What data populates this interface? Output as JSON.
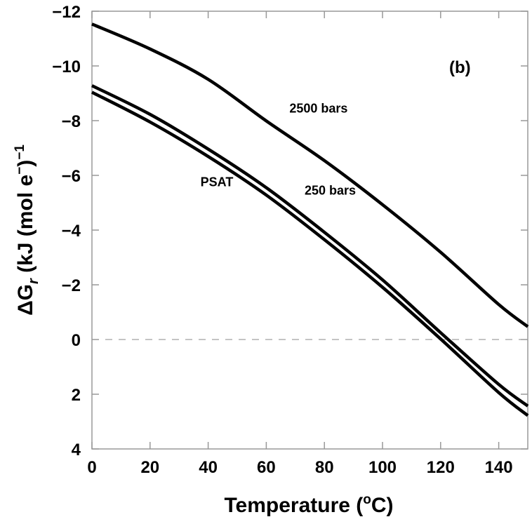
{
  "chart_data": {
    "type": "line",
    "title": "",
    "panel_label": "(b)",
    "xlabel": "Temperature (",
    "xlabel_sup": "o",
    "xlabel_end": "C)",
    "ylabel_prefix": "ΔG",
    "ylabel_sub": "r",
    "ylabel_mid": " (kJ (mol e",
    "ylabel_sup": "−",
    "ylabel_end": ")",
    "ylabel_exp": "−1",
    "xlim": [
      0,
      150
    ],
    "ylim": [
      -12,
      4
    ],
    "y_inverted": true,
    "xticks": [
      "0",
      "20",
      "40",
      "60",
      "80",
      "100",
      "120",
      "140"
    ],
    "xtick_values": [
      0,
      20,
      40,
      60,
      80,
      100,
      120,
      140
    ],
    "yticks": [
      "−12",
      "−10",
      "−8",
      "−6",
      "−4",
      "−2",
      "0",
      "2",
      "4"
    ],
    "ytick_values": [
      -12,
      -10,
      -8,
      -6,
      -4,
      -2,
      0,
      2,
      4
    ],
    "reference_line": {
      "y": 0,
      "style": "dashed"
    },
    "x": [
      0,
      20,
      40,
      60,
      80,
      100,
      120,
      140,
      150
    ],
    "series": [
      {
        "name": "2500 bars",
        "values": [
          -11.53,
          -10.62,
          -9.51,
          -7.99,
          -6.54,
          -4.93,
          -3.19,
          -1.28,
          -0.47
        ],
        "label_at": [
          78,
          -8.3
        ]
      },
      {
        "name": "250 bars",
        "values": [
          -9.28,
          -8.23,
          -6.96,
          -5.55,
          -3.92,
          -2.18,
          -0.25,
          1.64,
          2.43
        ],
        "label_at": [
          82,
          -5.3
        ]
      },
      {
        "name": "PSAT",
        "values": [
          -9.04,
          -7.95,
          -6.69,
          -5.28,
          -3.65,
          -1.91,
          -0.02,
          1.94,
          2.78
        ],
        "label_at": [
          43,
          -5.6
        ]
      }
    ]
  }
}
